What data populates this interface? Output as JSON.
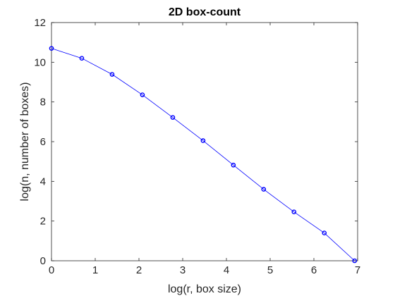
{
  "chart_data": {
    "type": "line",
    "title": "2D box-count",
    "xlabel": "log(r, box size)",
    "ylabel": "log(n, number of boxes)",
    "xlim": [
      0,
      7
    ],
    "ylim": [
      0,
      12
    ],
    "xticks": [
      "0",
      "1",
      "2",
      "3",
      "4",
      "5",
      "6",
      "7"
    ],
    "yticks": [
      "0",
      "2",
      "4",
      "6",
      "8",
      "10",
      "12"
    ],
    "grid": false,
    "series": [
      {
        "x": [
          0,
          0.693,
          1.386,
          2.079,
          2.773,
          3.466,
          4.159,
          4.852,
          5.545,
          6.238,
          6.931
        ],
        "y": [
          10.7,
          10.2,
          9.39,
          8.36,
          7.22,
          6.05,
          4.82,
          3.6,
          2.46,
          1.4,
          0.0
        ],
        "color": "#0000ff",
        "marker": "circle"
      }
    ]
  }
}
